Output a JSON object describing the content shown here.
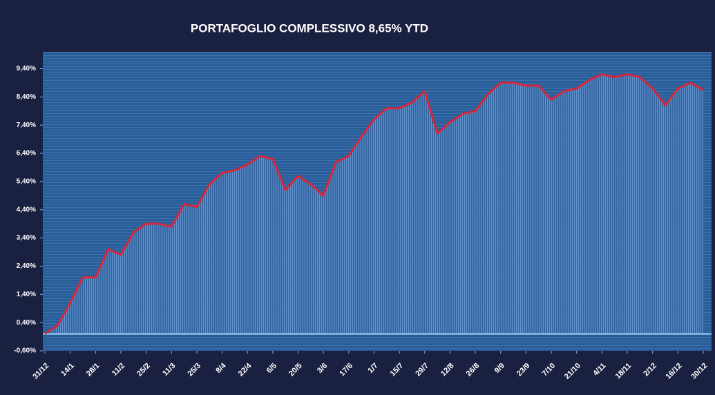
{
  "chart_data": {
    "type": "line",
    "title": "PORTAFOGLIO COMPLESSIVO 8,65% YTD",
    "categories": [
      "31/12",
      null,
      "14/1",
      null,
      "28/1",
      null,
      "11/2",
      null,
      "25/2",
      null,
      "11/3",
      null,
      "25/3",
      null,
      "8/4",
      null,
      "22/4",
      null,
      "6/5",
      null,
      "20/5",
      null,
      "3/6",
      null,
      "17/6",
      null,
      "1/7",
      null,
      "15/7",
      null,
      "29/7",
      null,
      "12/8",
      null,
      "26/8",
      null,
      "9/9",
      null,
      "23/9",
      null,
      "7/10",
      null,
      "21/10",
      null,
      "4/11",
      null,
      "18/11",
      null,
      "2/12",
      null,
      "16/12",
      null,
      "30/12"
    ],
    "series": [
      {
        "color": "#d9263a",
        "values": [
          0.0,
          0.3,
          1.1,
          2.0,
          2.0,
          3.0,
          2.8,
          3.6,
          3.9,
          3.9,
          3.8,
          4.6,
          4.5,
          5.3,
          5.7,
          5.8,
          6.0,
          6.3,
          6.2,
          5.1,
          5.6,
          5.3,
          4.9,
          6.1,
          6.3,
          7.0,
          7.6,
          8.0,
          8.0,
          8.2,
          8.6,
          7.1,
          7.5,
          7.8,
          7.9,
          8.5,
          8.9,
          8.9,
          8.8,
          8.8,
          8.3,
          8.6,
          8.7,
          9.0,
          9.2,
          9.1,
          9.2,
          9.1,
          8.7,
          8.1,
          8.7,
          8.9,
          8.65
        ]
      }
    ],
    "ylim": [
      -0.6,
      10.0
    ],
    "yticks": [
      {
        "value": -0.6,
        "label": "-0,60%"
      },
      {
        "value": 0.4,
        "label": "0,40%"
      },
      {
        "value": 1.4,
        "label": "1,40%"
      },
      {
        "value": 2.4,
        "label": "2,40%"
      },
      {
        "value": 3.4,
        "label": "3,40%"
      },
      {
        "value": 4.4,
        "label": "4,40%"
      },
      {
        "value": 5.4,
        "label": "5,40%"
      },
      {
        "value": 6.4,
        "label": "6,40%"
      },
      {
        "value": 7.4,
        "label": "7,40%"
      },
      {
        "value": 8.4,
        "label": "8,40%"
      },
      {
        "value": 9.4,
        "label": "9,40%"
      }
    ]
  }
}
